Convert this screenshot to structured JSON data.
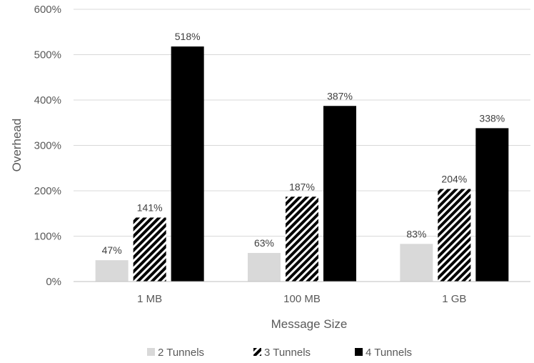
{
  "chart_data": {
    "type": "bar",
    "title": "",
    "xlabel": "Message Size",
    "ylabel": "Overhead",
    "categories": [
      "1 MB",
      "100 MB",
      "1 GB"
    ],
    "ylim": [
      0,
      600
    ],
    "yticks": [
      "0%",
      "100%",
      "200%",
      "300%",
      "400%",
      "500%",
      "600%"
    ],
    "grid": true,
    "legend_position": "bottom",
    "series": [
      {
        "name": "2 Tunnels",
        "values": [
          47,
          63,
          83
        ],
        "labels": [
          "47%",
          "63%",
          "83%"
        ],
        "color": "#d9d9d9",
        "pattern": "solid"
      },
      {
        "name": "3 Tunnels",
        "values": [
          141,
          187,
          204
        ],
        "labels": [
          "141%",
          "187%",
          "204%"
        ],
        "color": "#000000",
        "pattern": "diagonal-stripes"
      },
      {
        "name": "4 Tunnels",
        "values": [
          518,
          387,
          338
        ],
        "labels": [
          "518%",
          "387%",
          "338%"
        ],
        "color": "#000000",
        "pattern": "solid"
      }
    ]
  }
}
